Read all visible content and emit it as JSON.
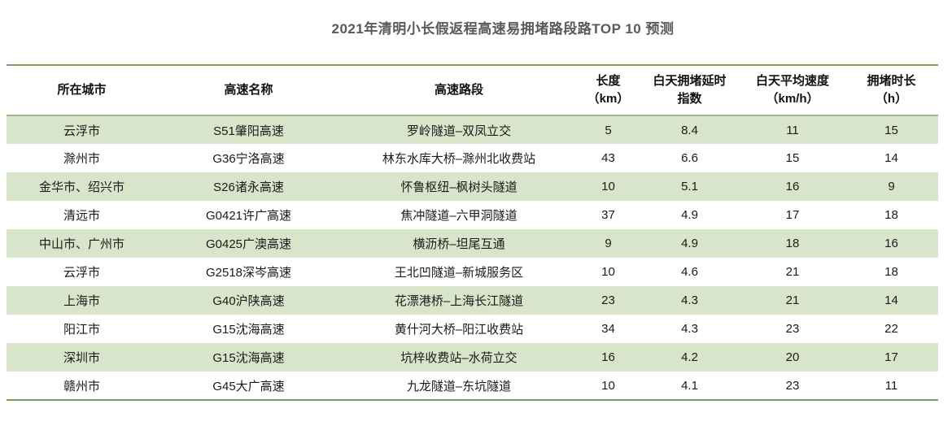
{
  "title": "2021年清明小长假返程高速易拥堵路段路TOP 10 预测",
  "colors": {
    "accent_border_green": "#78a356",
    "header_separator_green": "#9eb58d",
    "row_stripe_green": "#d8e5ca",
    "title_gray": "#595959",
    "body_text": "#1a1a1a"
  },
  "chart_data": {
    "type": "table",
    "title": "2021年清明小长假返程高速易拥堵路段路TOP 10 预测",
    "columns": [
      {
        "label": "所在城市"
      },
      {
        "label": "高速名称"
      },
      {
        "label": "高速路段"
      },
      {
        "label": "长度\n（km）"
      },
      {
        "label": "白天拥堵延时\n指数"
      },
      {
        "label": "白天平均速度\n（km/h）"
      },
      {
        "label": "拥堵时长\n（h）"
      }
    ],
    "rows": [
      [
        "云浮市",
        "S51肇阳高速",
        "罗岭隧道–双凤立交",
        "5",
        "8.4",
        "11",
        "15"
      ],
      [
        "滁州市",
        "G36宁洛高速",
        "林东水库大桥–滁州北收费站",
        "43",
        "6.6",
        "15",
        "14"
      ],
      [
        "金华市、绍兴市",
        "S26诸永高速",
        "怀鲁枢纽–枫树头隧道",
        "10",
        "5.1",
        "16",
        "9"
      ],
      [
        "清远市",
        "G0421许广高速",
        "焦冲隧道–六甲洞隧道",
        "37",
        "4.9",
        "17",
        "18"
      ],
      [
        "中山市、广州市",
        "G0425广澳高速",
        "横沥桥–坦尾互通",
        "9",
        "4.9",
        "18",
        "16"
      ],
      [
        "云浮市",
        "G2518深岑高速",
        "王北凹隧道–新城服务区",
        "10",
        "4.6",
        "21",
        "18"
      ],
      [
        "上海市",
        "G40沪陕高速",
        "花漂港桥–上海长江隧道",
        "23",
        "4.3",
        "21",
        "14"
      ],
      [
        "阳江市",
        "G15沈海高速",
        "黄什河大桥–阳江收费站",
        "34",
        "4.3",
        "23",
        "22"
      ],
      [
        "深圳市",
        "G15沈海高速",
        "坑梓收费站–水荷立交",
        "16",
        "4.2",
        "20",
        "17"
      ],
      [
        "赣州市",
        "G45大广高速",
        "九龙隧道–东坑隧道",
        "10",
        "4.1",
        "23",
        "11"
      ]
    ]
  }
}
